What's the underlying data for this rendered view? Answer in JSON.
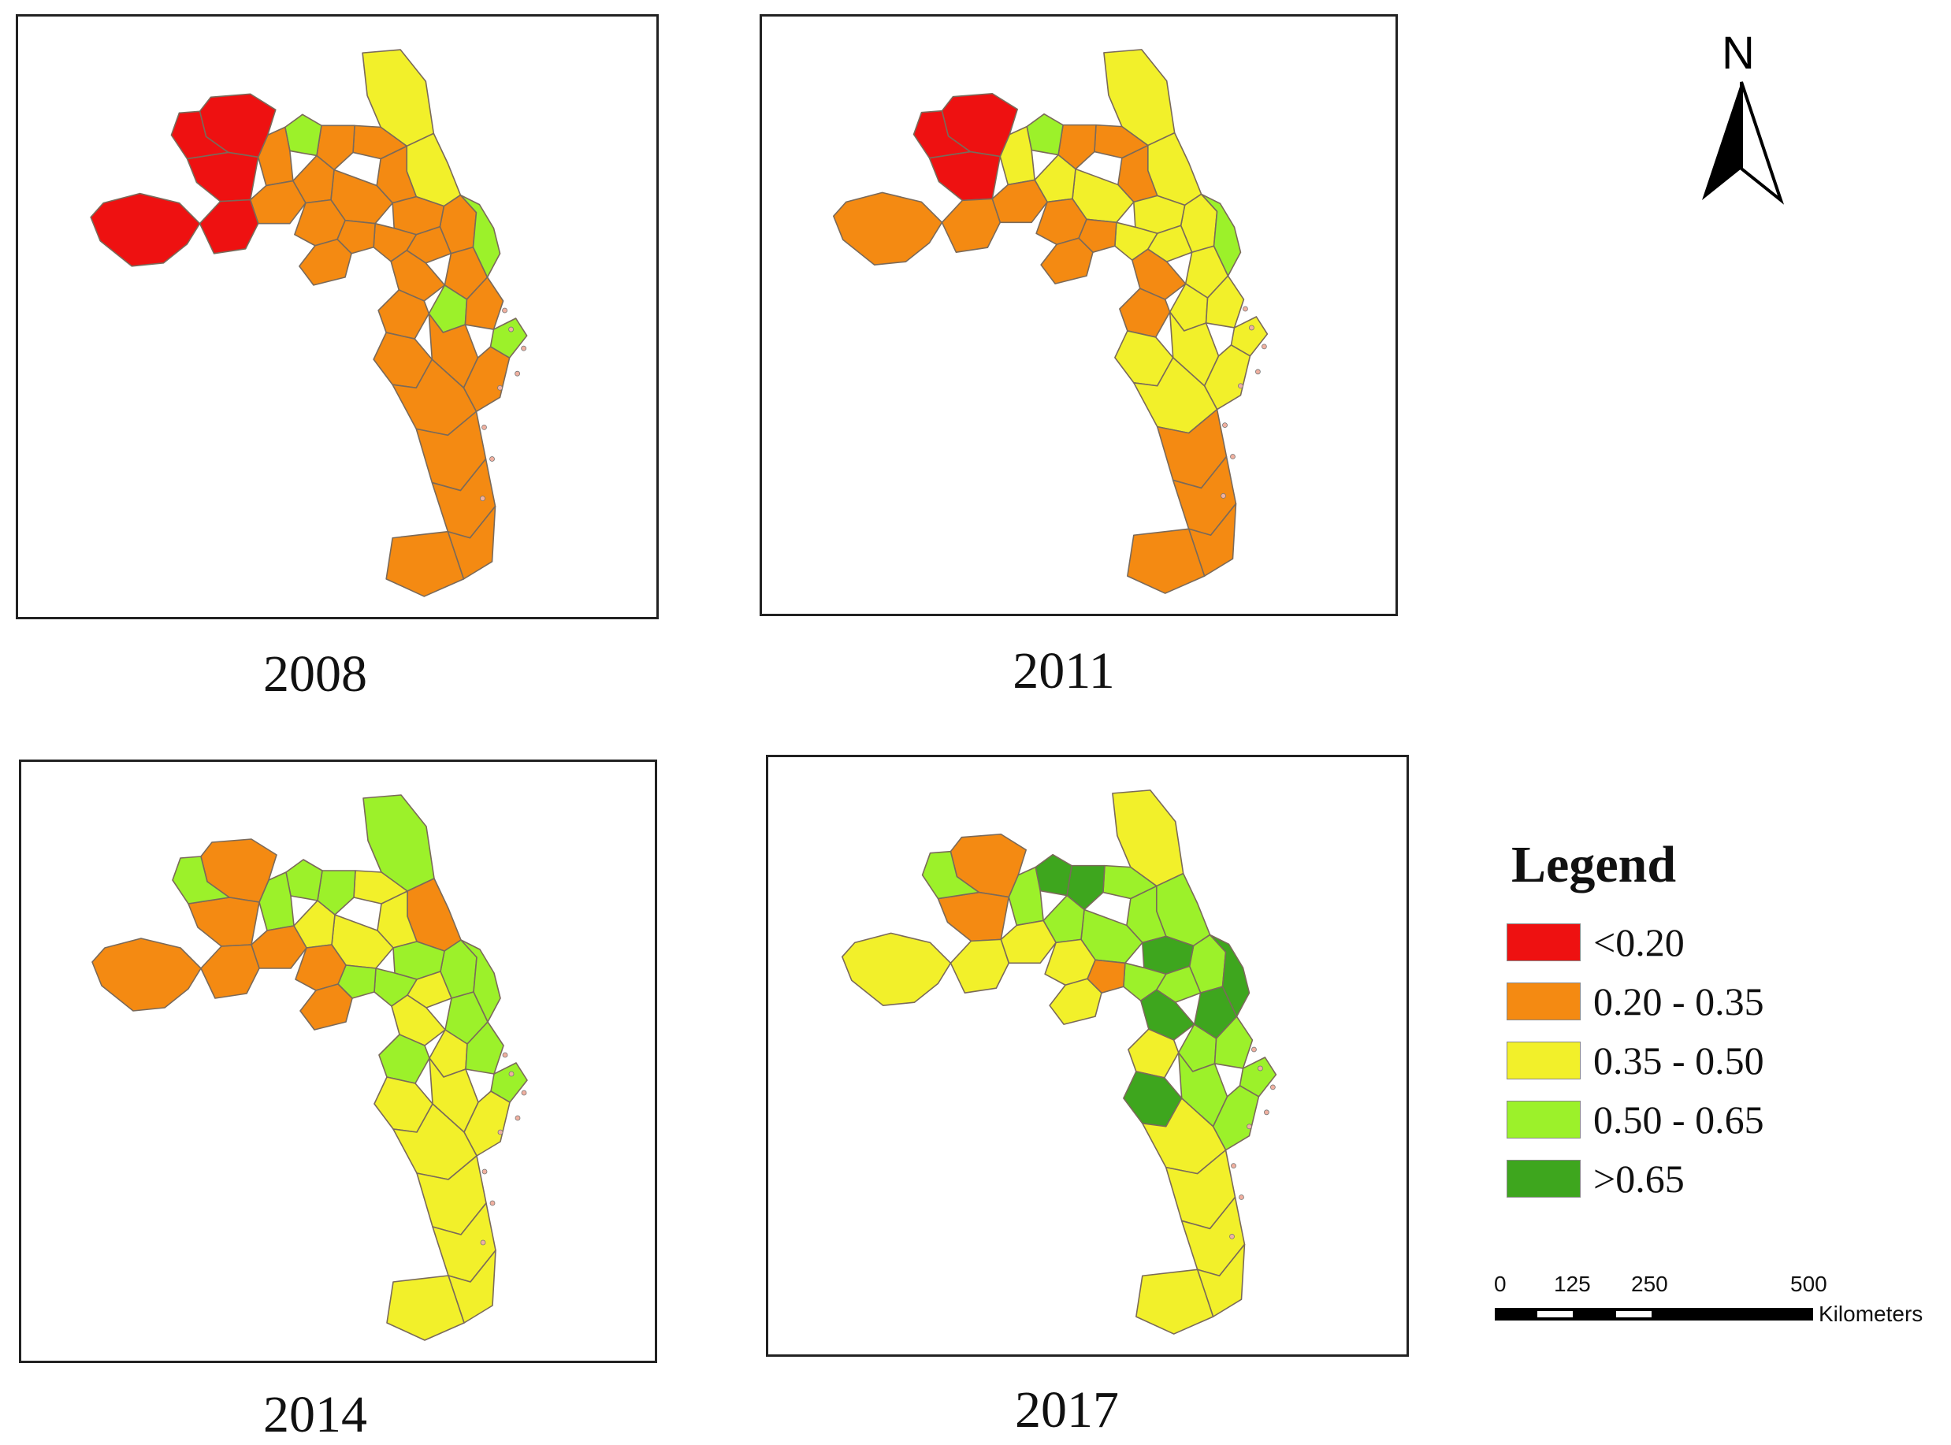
{
  "maps": [
    {
      "year": "2008",
      "values": [
        2,
        2,
        1,
        1,
        1,
        3,
        1,
        1,
        1,
        1,
        1,
        1,
        3,
        1,
        1,
        1,
        1,
        1,
        1,
        1,
        3,
        1,
        1,
        3,
        0,
        0,
        0,
        0,
        0,
        1,
        1,
        1,
        1,
        1,
        1,
        1,
        1
      ]
    },
    {
      "year": "2011",
      "values": [
        2,
        2,
        1,
        1,
        1,
        3,
        2,
        2,
        2,
        2,
        2,
        2,
        3,
        2,
        1,
        2,
        1,
        1,
        1,
        1,
        2,
        2,
        1,
        2,
        0,
        0,
        0,
        1,
        1,
        2,
        2,
        2,
        2,
        1,
        1,
        1,
        1
      ]
    },
    {
      "year": "2014",
      "values": [
        3,
        1,
        2,
        2,
        3,
        3,
        2,
        2,
        3,
        3,
        2,
        3,
        3,
        3,
        3,
        3,
        2,
        1,
        1,
        1,
        2,
        3,
        3,
        3,
        1,
        1,
        3,
        1,
        1,
        2,
        2,
        2,
        2,
        2,
        2,
        2,
        2
      ]
    },
    {
      "year": "2017",
      "values": [
        2,
        3,
        3,
        3,
        4,
        4,
        3,
        3,
        3,
        4,
        3,
        4,
        4,
        3,
        1,
        3,
        4,
        2,
        2,
        2,
        3,
        3,
        2,
        3,
        1,
        1,
        3,
        2,
        2,
        4,
        3,
        3,
        2,
        2,
        2,
        2,
        2
      ]
    }
  ],
  "legend": {
    "title": "Legend",
    "items": [
      {
        "label": "<0.20",
        "color": "#ee1111"
      },
      {
        "label": "0.20 - 0.35",
        "color": "#f48a12"
      },
      {
        "label": "0.35 - 0.50",
        "color": "#f2f02a"
      },
      {
        "label": "0.50 - 0.65",
        "color": "#9cf12a"
      },
      {
        "label": ">0.65",
        "color": "#3ea61e"
      }
    ]
  },
  "north_arrow": {
    "label": "N"
  },
  "scale_bar": {
    "ticks": [
      "0",
      "125",
      "250",
      "500"
    ],
    "units": "Kilometers"
  }
}
